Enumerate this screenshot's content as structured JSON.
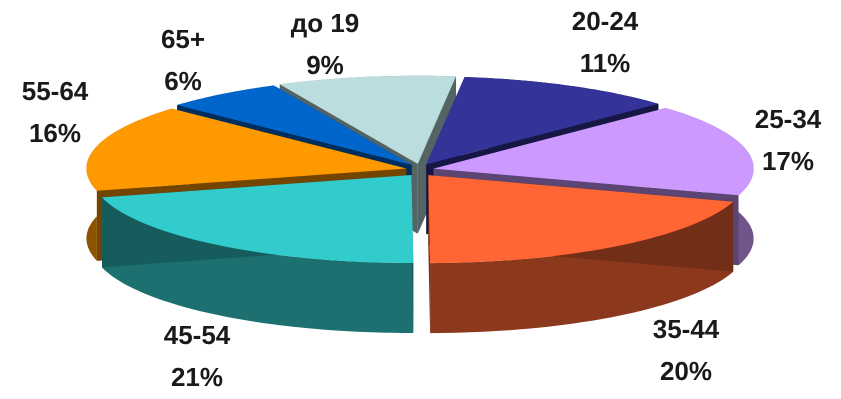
{
  "chart_data": {
    "type": "pie",
    "style": "3d-exploded",
    "slices": [
      {
        "label": "20-24",
        "value": 11,
        "pct_label": "11%",
        "color": "#333399"
      },
      {
        "label": "25-34",
        "value": 17,
        "pct_label": "17%",
        "color": "#CC99FF"
      },
      {
        "label": "35-44",
        "value": 20,
        "pct_label": "20%",
        "color": "#FF6633"
      },
      {
        "label": "45-54",
        "value": 21,
        "pct_label": "21%",
        "color": "#33CCCC"
      },
      {
        "label": "55-64",
        "value": 16,
        "pct_label": "16%",
        "color": "#FF9900"
      },
      {
        "label": "65+",
        "value": 6,
        "pct_label": "6%",
        "color": "#0066CC"
      },
      {
        "label": "до 19",
        "value": 9,
        "pct_label": "9%",
        "color": "#BBDDDD"
      }
    ]
  }
}
